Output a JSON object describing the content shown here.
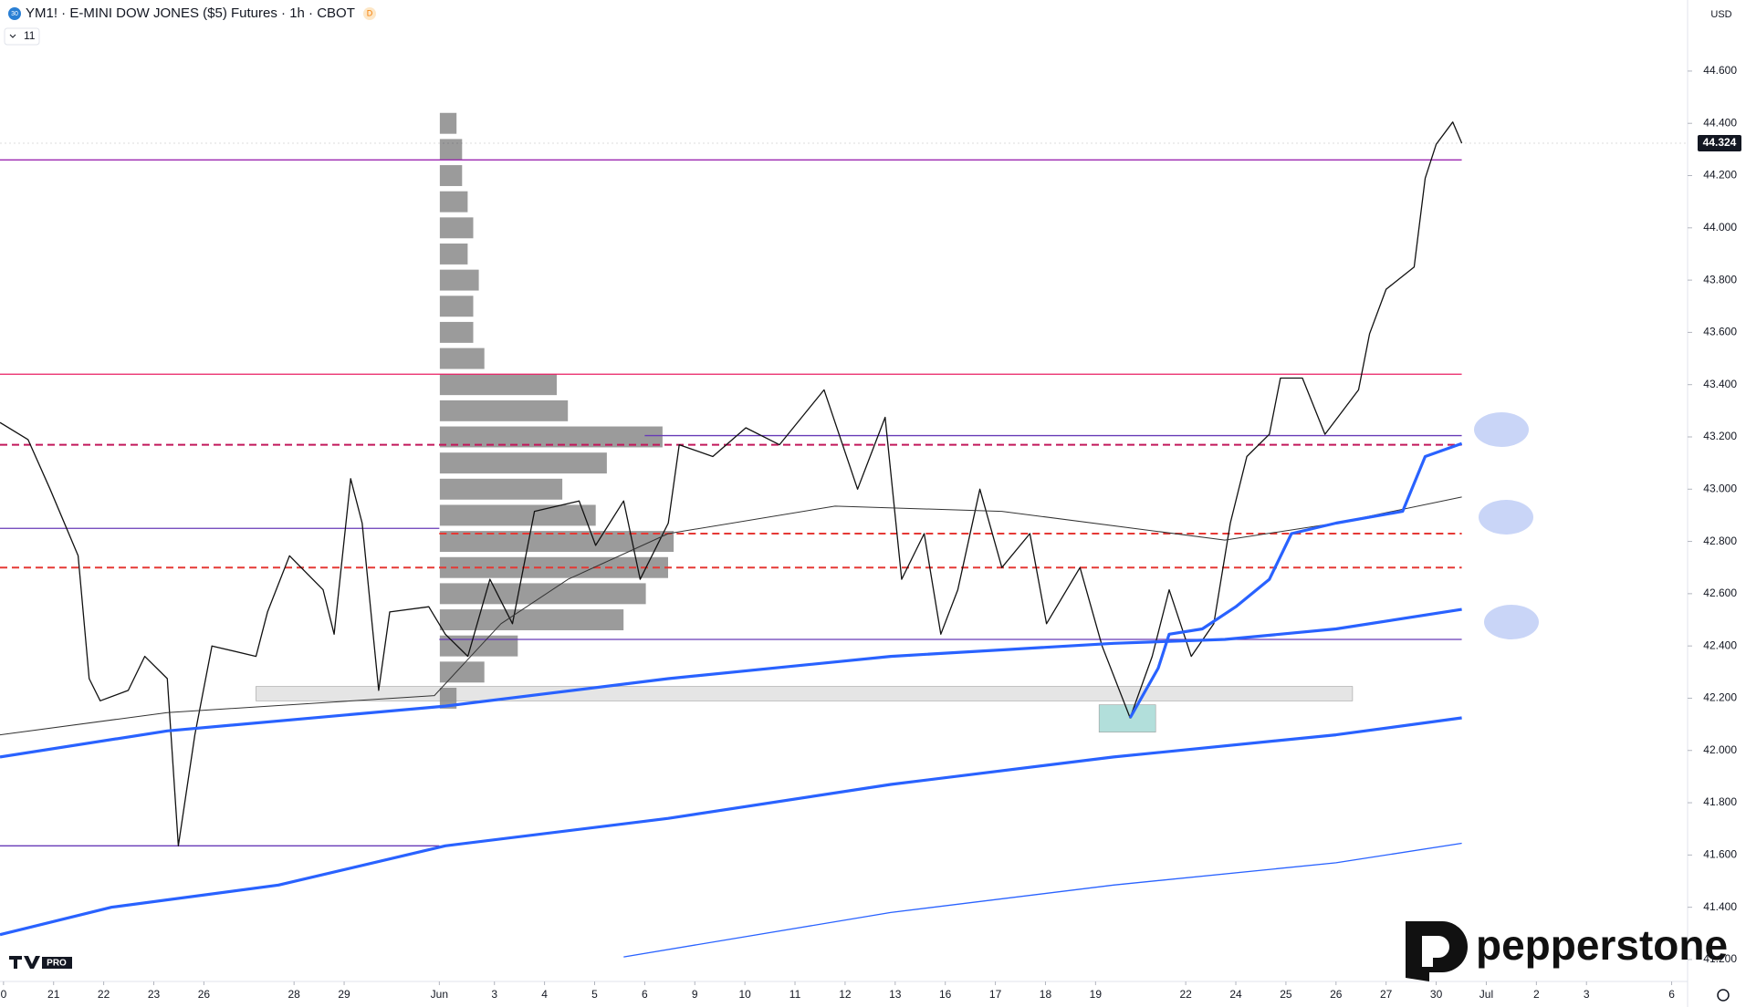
{
  "header": {
    "title": "YM1! · E-MINI DOW JONES ($5) Futures · 1h · CBOT",
    "badge": "D",
    "symbol_icon": "30",
    "indicator_count": "11",
    "currency": "USD",
    "tv_badge": "PRO",
    "watermark": "pepperstone"
  },
  "chart_data": {
    "type": "line",
    "xlim": [
      -0.07,
      33.6
    ],
    "ylim": [
      41123,
      44872
    ],
    "yticks": [
      {
        "value": 41200,
        "label": "41.200"
      },
      {
        "value": 41400,
        "label": "41.400"
      },
      {
        "value": 41600,
        "label": "41.600"
      },
      {
        "value": 41800,
        "label": "41.800"
      },
      {
        "value": 42000,
        "label": "42.000"
      },
      {
        "value": 42200,
        "label": "42.200"
      },
      {
        "value": 42400,
        "label": "42.400"
      },
      {
        "value": 42600,
        "label": "42.600"
      },
      {
        "value": 42800,
        "label": "42.800"
      },
      {
        "value": 43000,
        "label": "43.000"
      },
      {
        "value": 43200,
        "label": "43.200"
      },
      {
        "value": 43400,
        "label": "43.400"
      },
      {
        "value": 43600,
        "label": "43.600"
      },
      {
        "value": 43800,
        "label": "43.800"
      },
      {
        "value": 44000,
        "label": "44.000"
      },
      {
        "value": 44200,
        "label": "44.200"
      },
      {
        "value": 44400,
        "label": "44.400"
      },
      {
        "value": 44600,
        "label": "44.600"
      }
    ],
    "xticks": [
      {
        "value": 0,
        "label": "0"
      },
      {
        "value": 1.0,
        "label": "21"
      },
      {
        "value": 2.0,
        "label": "22"
      },
      {
        "value": 3.0,
        "label": "23"
      },
      {
        "value": 4.0,
        "label": "26"
      },
      {
        "value": 5.8,
        "label": "28"
      },
      {
        "value": 6.8,
        "label": "29"
      },
      {
        "value": 8.7,
        "label": "Jun"
      },
      {
        "value": 9.8,
        "label": "3"
      },
      {
        "value": 10.8,
        "label": "4"
      },
      {
        "value": 11.8,
        "label": "5"
      },
      {
        "value": 12.8,
        "label": "6"
      },
      {
        "value": 13.8,
        "label": "9"
      },
      {
        "value": 14.8,
        "label": "10"
      },
      {
        "value": 15.8,
        "label": "11"
      },
      {
        "value": 16.8,
        "label": "12"
      },
      {
        "value": 17.8,
        "label": "13"
      },
      {
        "value": 18.8,
        "label": "16"
      },
      {
        "value": 19.8,
        "label": "17"
      },
      {
        "value": 20.8,
        "label": "18"
      },
      {
        "value": 21.8,
        "label": "19"
      },
      {
        "value": 23.6,
        "label": "22"
      },
      {
        "value": 24.6,
        "label": "24"
      },
      {
        "value": 25.6,
        "label": "25"
      },
      {
        "value": 26.6,
        "label": "26"
      },
      {
        "value": 27.6,
        "label": "27"
      },
      {
        "value": 28.6,
        "label": "30"
      },
      {
        "value": 29.6,
        "label": "Jul"
      },
      {
        "value": 30.6,
        "label": "2"
      },
      {
        "value": 31.6,
        "label": "3"
      },
      {
        "value": 33.3,
        "label": "6"
      }
    ],
    "last_price": {
      "value": 44324,
      "label": "44.324"
    },
    "series": [
      {
        "color": "#111111",
        "width": 1.3,
        "x": [
          -0.07,
          0.49,
          0.93,
          1.49,
          1.71,
          1.93,
          2.49,
          2.82,
          3.27,
          3.49,
          3.82,
          4.16,
          5.04,
          5.27,
          5.71,
          6.38,
          6.6,
          6.93,
          7.16,
          7.49,
          7.71,
          8.49,
          8.82,
          9.27,
          9.71,
          10.16,
          10.6,
          11.49,
          11.82,
          12.38,
          12.71,
          13.27,
          13.49,
          14.16,
          14.82,
          15.49,
          16.38,
          17.05,
          17.6,
          17.93,
          18.38,
          18.71,
          19.05,
          19.49,
          19.93,
          20.49,
          20.82,
          21.49,
          21.93,
          22.49,
          22.93,
          23.27,
          23.71,
          24.16,
          24.49,
          24.82,
          25.27,
          25.49,
          25.93,
          26.38,
          27.05,
          27.27,
          27.6,
          28.16,
          28.38,
          28.6,
          28.93,
          29.11
        ],
        "values": [
          43255,
          43190,
          43000,
          42745,
          42275,
          42190,
          42230,
          42360,
          42275,
          41635,
          42060,
          42400,
          42360,
          42530,
          42745,
          42615,
          42445,
          43040,
          42870,
          42230,
          42530,
          42550,
          42445,
          42360,
          42655,
          42485,
          42915,
          42955,
          42785,
          42955,
          42655,
          42870,
          43170,
          43125,
          43235,
          43170,
          43380,
          43000,
          43275,
          42655,
          42830,
          42445,
          42615,
          43000,
          42700,
          42830,
          42485,
          42700,
          42400,
          42125,
          42360,
          42615,
          42360,
          42485,
          42870,
          43125,
          43210,
          43425,
          43425,
          43210,
          43380,
          43595,
          43765,
          43850,
          44190,
          44320,
          44405,
          44324
        ]
      },
      {
        "color": "#333333",
        "width": 1,
        "x": [
          -0.07,
          3.27,
          8.6,
          9.93,
          11.27,
          13.27,
          16.6,
          19.93,
          24.38,
          26.6,
          29.11
        ],
        "values": [
          42060,
          42145,
          42210,
          42485,
          42655,
          42830,
          42935,
          42915,
          42805,
          42870,
          42970
        ]
      },
      {
        "color": "#2962ff",
        "width": 3.2,
        "x": [
          22.49,
          23.05,
          23.27,
          23.93,
          24.6,
          25.27,
          25.71,
          26.6,
          27.93,
          28.38,
          29.11
        ],
        "values": [
          42125,
          42315,
          42445,
          42465,
          42550,
          42655,
          42830,
          42870,
          42915,
          43125,
          43175
        ]
      },
      {
        "color": "#2962ff",
        "width": 3.2,
        "x": [
          -0.07,
          3.27,
          8.82,
          13.27,
          17.71,
          22.16,
          24.38,
          26.6,
          29.11
        ],
        "values": [
          41975,
          42075,
          42170,
          42275,
          42360,
          42410,
          42425,
          42465,
          42540
        ]
      },
      {
        "color": "#2962ff",
        "width": 3.2,
        "x": [
          -0.07,
          2.16,
          5.49,
          8.82,
          13.27,
          17.71,
          22.16,
          26.6,
          29.11
        ],
        "values": [
          41295,
          41400,
          41485,
          41635,
          41740,
          41870,
          41975,
          42060,
          42125
        ]
      },
      {
        "color": "#2962ff",
        "width": 1.3,
        "x": [
          12.38,
          17.71,
          22.16,
          26.6,
          29.11
        ],
        "values": [
          41210,
          41380,
          41485,
          41570,
          41645
        ]
      }
    ],
    "levels": [
      {
        "value": 44260,
        "from": -0.07,
        "to": 29.11,
        "color": "#9c27b0",
        "dash": false
      },
      {
        "value": 43440,
        "from": -0.07,
        "to": 29.11,
        "color": "#e91e63",
        "dash": false
      },
      {
        "value": 43205,
        "from": 12.8,
        "to": 29.11,
        "color": "#673ab7",
        "dash": false
      },
      {
        "value": 43170,
        "from": -0.07,
        "to": 29.11,
        "color": "#c2185b",
        "dash": true
      },
      {
        "value": 42850,
        "from": -0.07,
        "to": 8.7,
        "color": "#673ab7",
        "dash": false
      },
      {
        "value": 42830,
        "from": 8.7,
        "to": 29.11,
        "color": "#e53935",
        "dash": true
      },
      {
        "value": 42700,
        "from": -0.07,
        "to": 29.11,
        "color": "#e53935",
        "dash": true
      },
      {
        "value": 42425,
        "from": 8.7,
        "to": 29.11,
        "color": "#673ab7",
        "dash": false
      },
      {
        "value": 41635,
        "from": -0.07,
        "to": 8.7,
        "color": "#673ab7",
        "dash": false
      }
    ],
    "zones": [
      {
        "from": 5.04,
        "to": 26.93,
        "low": 42190,
        "high": 42245,
        "color": "rgba(180,180,180,0.35)"
      },
      {
        "from": 21.87,
        "to": 23.0,
        "low": 42070,
        "high": 42175,
        "color": "rgba(0,150,136,0.3)"
      }
    ],
    "volume_profile": {
      "start": 8.71,
      "color": "#8a8a8a",
      "prices": [
        44400,
        44300,
        44200,
        44100,
        44000,
        43900,
        43800,
        43700,
        43600,
        43500,
        43400,
        43300,
        43200,
        43100,
        43000,
        42900,
        42800,
        42700,
        42600,
        42500,
        42400,
        42300,
        42200
      ],
      "values": [
        15,
        20,
        20,
        25,
        30,
        25,
        35,
        30,
        30,
        40,
        105,
        115,
        200,
        150,
        110,
        140,
        210,
        205,
        185,
        165,
        70,
        40,
        15
      ]
    }
  }
}
